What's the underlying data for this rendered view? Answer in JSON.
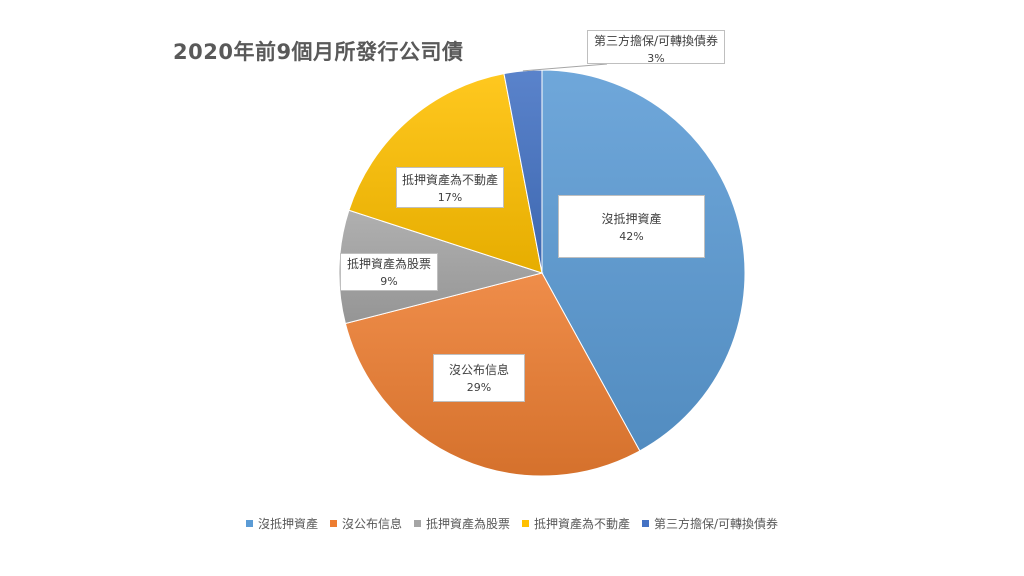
{
  "chart_data": {
    "type": "pie",
    "title": "2020年前9個月所發行公司債",
    "slices": [
      {
        "name": "沒抵押資產",
        "value": 42,
        "label": "42%",
        "color": "#5b9bd5"
      },
      {
        "name": "沒公布信息",
        "value": 29,
        "label": "29%",
        "color": "#ed7d31"
      },
      {
        "name": "抵押資產為股票",
        "value": 9,
        "label": "9%",
        "color": "#a5a5a5"
      },
      {
        "name": "抵押資產為不動產",
        "value": 17,
        "label": "17%",
        "color": "#ffc000"
      },
      {
        "name": "第三方擔保/可轉換債券",
        "value": 3,
        "label": "3%",
        "color": "#4472c4"
      }
    ],
    "legend_position": "bottom",
    "start_angle": "12 o'clock",
    "direction": "clockwise"
  }
}
